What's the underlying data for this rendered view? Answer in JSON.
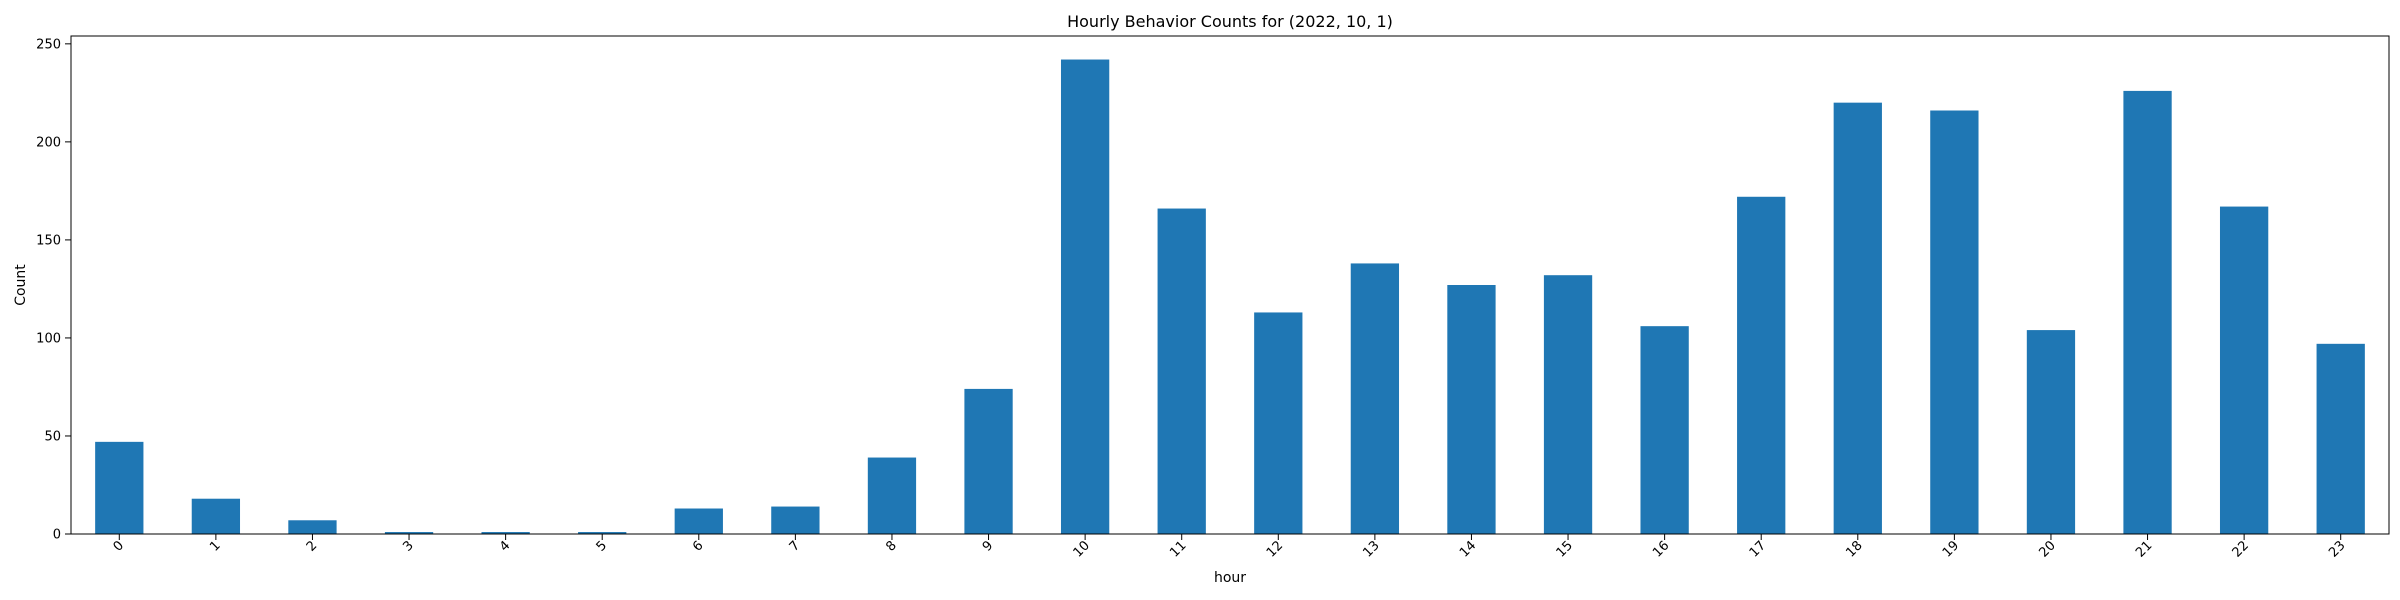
{
  "chart_data": {
    "type": "bar",
    "title": "Hourly Behavior Counts for (2022, 10, 1)",
    "xlabel": "hour",
    "ylabel": "Count",
    "categories": [
      "0",
      "1",
      "2",
      "3",
      "4",
      "5",
      "6",
      "7",
      "8",
      "9",
      "10",
      "11",
      "12",
      "13",
      "14",
      "15",
      "16",
      "17",
      "18",
      "19",
      "20",
      "21",
      "22",
      "23"
    ],
    "values": [
      47,
      18,
      7,
      1,
      1,
      1,
      13,
      14,
      39,
      74,
      242,
      166,
      113,
      138,
      127,
      132,
      106,
      172,
      220,
      216,
      104,
      226,
      167,
      97
    ],
    "ylim": [
      0,
      254
    ],
    "yticks": [
      0,
      50,
      100,
      150,
      200,
      250
    ],
    "bar_color": "#1f77b4",
    "grid": false,
    "legend": "none"
  }
}
